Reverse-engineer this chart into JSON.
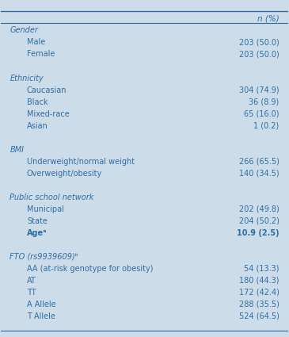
{
  "header_col": "",
  "header_val": "n (%)",
  "bg_color": "#ccdce8",
  "text_color": "#2e6da4",
  "bold_age_row": true,
  "rows": [
    {
      "label": "Gender",
      "value": "",
      "indent": 0,
      "italic": true,
      "bold": false
    },
    {
      "label": "Male",
      "value": "203 (50.0)",
      "indent": 1,
      "italic": false,
      "bold": false
    },
    {
      "label": "Female",
      "value": "203 (50.0)",
      "indent": 1,
      "italic": false,
      "bold": false
    },
    {
      "label": "",
      "value": "",
      "indent": 0,
      "italic": false,
      "bold": false
    },
    {
      "label": "Ethnicity",
      "value": "",
      "indent": 0,
      "italic": true,
      "bold": false
    },
    {
      "label": "Caucasian",
      "value": "304 (74.9)",
      "indent": 1,
      "italic": false,
      "bold": false
    },
    {
      "label": "Black",
      "value": "36 (8.9)",
      "indent": 1,
      "italic": false,
      "bold": false
    },
    {
      "label": "Mixed-race",
      "value": "65 (16.0)",
      "indent": 1,
      "italic": false,
      "bold": false
    },
    {
      "label": "Asian",
      "value": "1 (0.2)",
      "indent": 1,
      "italic": false,
      "bold": false
    },
    {
      "label": "",
      "value": "",
      "indent": 0,
      "italic": false,
      "bold": false
    },
    {
      "label": "BMI",
      "value": "",
      "indent": 0,
      "italic": true,
      "bold": false
    },
    {
      "label": "Underweight/normal weight",
      "value": "266 (65.5)",
      "indent": 1,
      "italic": false,
      "bold": false
    },
    {
      "label": "Overweight/obesity",
      "value": "140 (34.5)",
      "indent": 1,
      "italic": false,
      "bold": false
    },
    {
      "label": "",
      "value": "",
      "indent": 0,
      "italic": false,
      "bold": false
    },
    {
      "label": "Public school network",
      "value": "",
      "indent": 0,
      "italic": true,
      "bold": false
    },
    {
      "label": "Municipal",
      "value": "202 (49.8)",
      "indent": 1,
      "italic": false,
      "bold": false
    },
    {
      "label": "State",
      "value": "204 (50.2)",
      "indent": 1,
      "italic": false,
      "bold": false
    },
    {
      "label": "Ageᵃ",
      "value": "10.9 (2.5)",
      "indent": 1,
      "italic": false,
      "bold": true
    },
    {
      "label": "",
      "value": "",
      "indent": 0,
      "italic": false,
      "bold": false
    },
    {
      "label": "FTO (rs9939609)ᵇ",
      "value": "",
      "indent": 0,
      "italic": true,
      "bold": false
    },
    {
      "label": "AA (at-risk genotype for obesity)",
      "value": "54 (13.3)",
      "indent": 1,
      "italic": false,
      "bold": false
    },
    {
      "label": "AT",
      "value": "180 (44.3)",
      "indent": 1,
      "italic": false,
      "bold": false
    },
    {
      "label": "TT",
      "value": "172 (42.4)",
      "indent": 1,
      "italic": false,
      "bold": false
    },
    {
      "label": "A Allele",
      "value": "288 (35.5)",
      "indent": 1,
      "italic": false,
      "bold": false
    },
    {
      "label": "T Allele",
      "value": "524 (64.5)",
      "indent": 1,
      "italic": false,
      "bold": false
    }
  ]
}
